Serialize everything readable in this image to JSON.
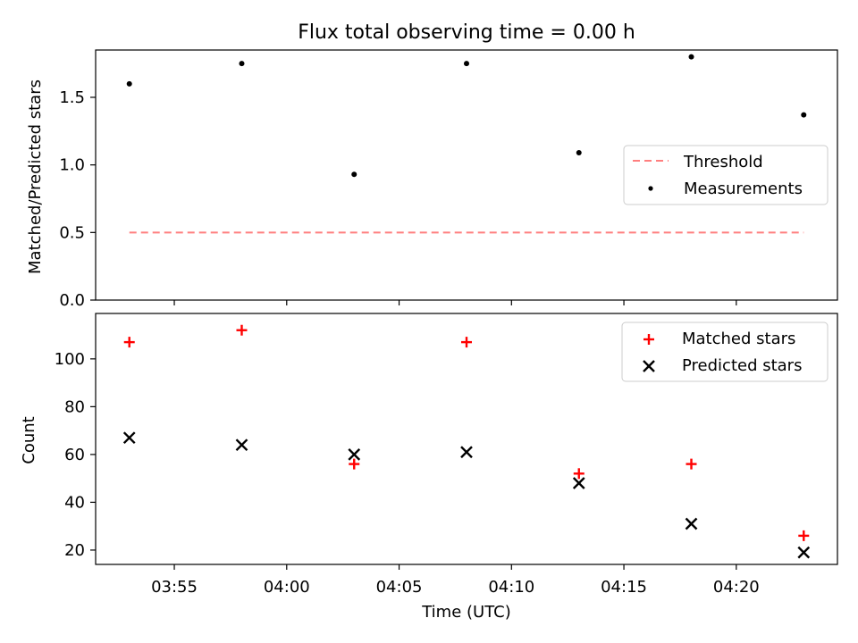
{
  "colors": {
    "threshold": "#ff7f7f",
    "measurements": "#000000",
    "matched": "#ff0000",
    "predicted": "#000000",
    "axes": "#000000"
  },
  "chart_data": [
    {
      "type": "scatter",
      "title": "Flux total observing time = 0.00 h",
      "xlabel": "",
      "ylabel": "Matched/Predicted stars",
      "x_time": [
        "03:53",
        "03:58",
        "04:03",
        "04:08",
        "04:13",
        "04:18",
        "04:23"
      ],
      "xlim": [
        "03:51:30",
        "04:24:30"
      ],
      "ylim": [
        0.0,
        1.85
      ],
      "yticks": [
        "0.0",
        "0.5",
        "1.0",
        "1.5"
      ],
      "series": [
        {
          "name": "Threshold",
          "style": "dashed-line",
          "x": [
            "03:53",
            "04:23"
          ],
          "values": [
            0.5,
            0.5
          ]
        },
        {
          "name": "Measurements",
          "style": "dot",
          "values": [
            1.6,
            1.75,
            0.93,
            1.75,
            1.09,
            1.8,
            1.37
          ]
        }
      ],
      "legend_position": "center-right",
      "grid": false
    },
    {
      "type": "scatter",
      "title": "",
      "xlabel": "Time (UTC)",
      "ylabel": "Count",
      "x_time": [
        "03:53",
        "03:58",
        "04:03",
        "04:08",
        "04:13",
        "04:18",
        "04:23"
      ],
      "xlim": [
        "03:51:30",
        "04:24:30"
      ],
      "xticks": [
        "03:55",
        "04:00",
        "04:05",
        "04:10",
        "04:15",
        "04:20"
      ],
      "ylim": [
        14,
        119
      ],
      "yticks": [
        "20",
        "40",
        "60",
        "80",
        "100"
      ],
      "series": [
        {
          "name": "Matched stars",
          "marker": "plus",
          "values": [
            107,
            112,
            56,
            107,
            52,
            56,
            26
          ]
        },
        {
          "name": "Predicted stars",
          "marker": "x",
          "values": [
            67,
            64,
            60,
            61,
            48,
            31,
            19
          ]
        }
      ],
      "legend_position": "top-right",
      "grid": false
    }
  ]
}
